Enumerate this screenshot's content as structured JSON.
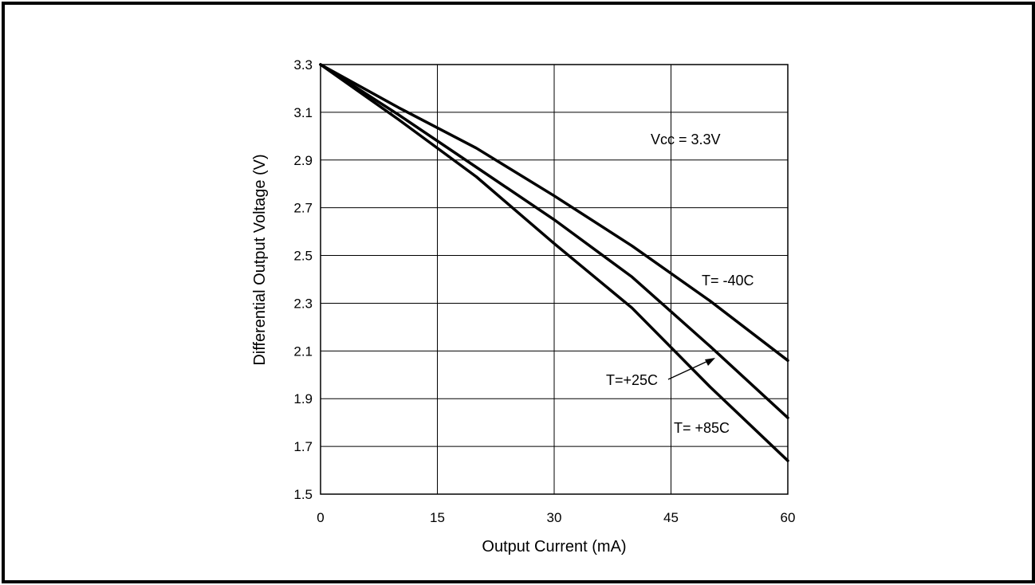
{
  "chart_data": {
    "type": "line",
    "xlabel": "Output Current (mA)",
    "ylabel": "Differential Output Voltage (V)",
    "xlim": [
      0,
      60
    ],
    "ylim": [
      1.5,
      3.3
    ],
    "xticks": [
      "0",
      "15",
      "30",
      "45",
      "60"
    ],
    "yticks": [
      "1.5",
      "1.7",
      "1.9",
      "2.1",
      "2.3",
      "2.5",
      "2.7",
      "2.9",
      "3.1",
      "3.3"
    ],
    "grid": true,
    "annotation": "Vcc = 3.3V",
    "series": [
      {
        "name": "T= -40C",
        "x": [
          0,
          10,
          20,
          30,
          40,
          50,
          60
        ],
        "y": [
          3.3,
          3.12,
          2.95,
          2.75,
          2.54,
          2.31,
          2.06
        ]
      },
      {
        "name": "T=+25C",
        "x": [
          0,
          10,
          20,
          30,
          40,
          50,
          60
        ],
        "y": [
          3.3,
          3.09,
          2.87,
          2.65,
          2.41,
          2.12,
          1.82
        ]
      },
      {
        "name": "T= +85C",
        "x": [
          0,
          10,
          20,
          30,
          40,
          50,
          60
        ],
        "y": [
          3.3,
          3.07,
          2.83,
          2.55,
          2.28,
          1.95,
          1.64
        ]
      }
    ]
  }
}
